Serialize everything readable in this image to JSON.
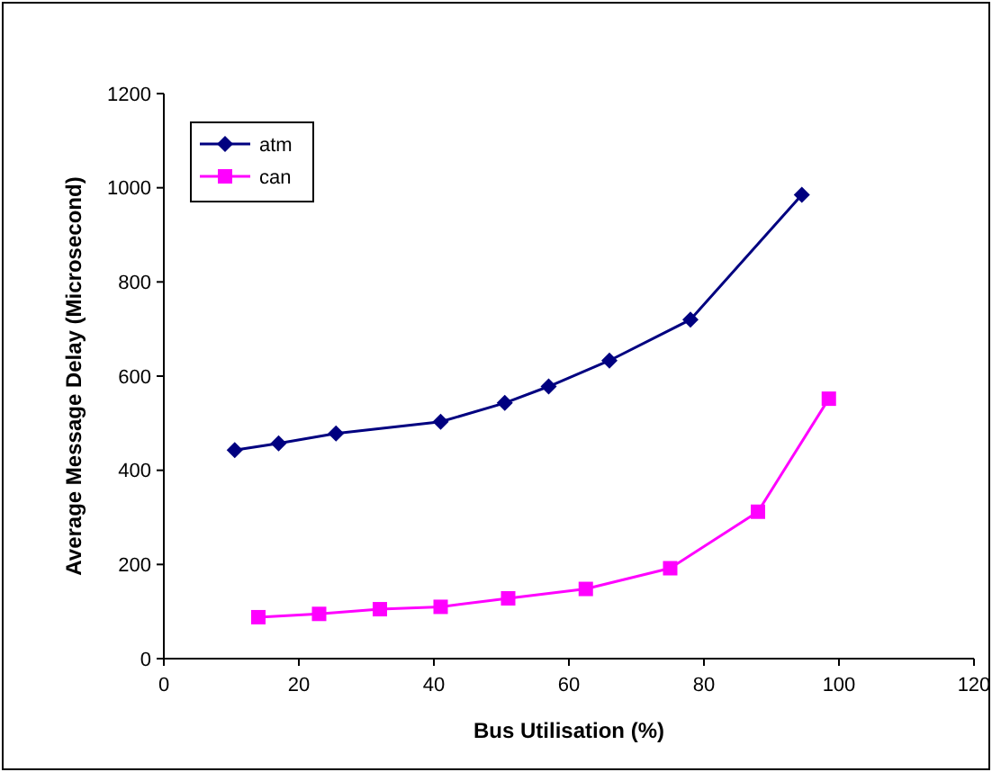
{
  "chart_data": {
    "type": "line",
    "xlabel": "Bus Utilisation (%)",
    "ylabel": "Average Message Delay (Microsecond)",
    "xlim": [
      0,
      120
    ],
    "xticks": [
      0,
      20,
      40,
      60,
      80,
      100,
      120
    ],
    "ylim": [
      0,
      1200
    ],
    "yticks": [
      0,
      200,
      400,
      600,
      800,
      1000,
      1200
    ],
    "legend": "top left",
    "grid": false,
    "series": [
      {
        "name": "atm",
        "color": "#000080",
        "marker": "diamond",
        "x": [
          10.5,
          17,
          25.5,
          41,
          50.5,
          57,
          66,
          78,
          94.5
        ],
        "values": [
          443,
          457,
          478,
          503,
          543,
          578,
          633,
          720,
          985
        ]
      },
      {
        "name": "can",
        "color": "#ff00ff",
        "marker": "square",
        "x": [
          14,
          23,
          32,
          41,
          51,
          62.5,
          75,
          88,
          98.5
        ],
        "values": [
          88,
          95,
          105,
          110,
          128,
          148,
          192,
          312,
          552
        ]
      }
    ]
  }
}
